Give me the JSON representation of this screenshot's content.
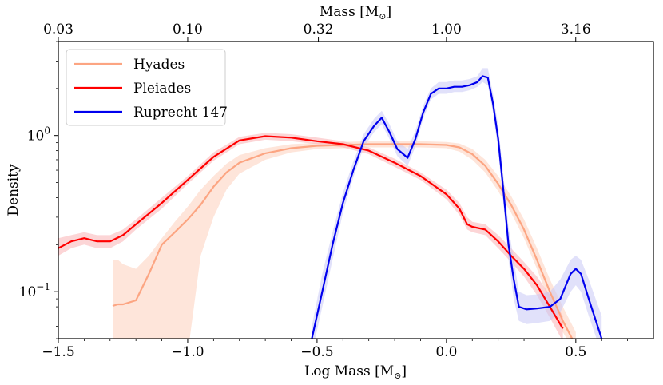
{
  "chart_data": {
    "type": "line",
    "title": "",
    "xlabel": "Log Mass [M",
    "xlabel_sub": "⊙",
    "xlabel_suffix": "]",
    "x2label": "Mass [M",
    "x2label_sub": "⊙",
    "x2label_suffix": "]",
    "ylabel": "Density",
    "xlim": [
      -1.5,
      0.8
    ],
    "ylim": [
      0.05,
      4.0
    ],
    "yscale": "log",
    "grid": false,
    "legend_position": "top-left",
    "x_ticks": [
      {
        "value": -1.5,
        "label": "−1.5"
      },
      {
        "value": -1.0,
        "label": "−1.0"
      },
      {
        "value": -0.5,
        "label": "−0.5"
      },
      {
        "value": 0.0,
        "label": "0.0"
      },
      {
        "value": 0.5,
        "label": "0.5"
      }
    ],
    "x2_ticks": [
      {
        "value": -1.5229,
        "label": "0.03"
      },
      {
        "value": -1.0,
        "label": "0.10"
      },
      {
        "value": -0.4949,
        "label": "0.32"
      },
      {
        "value": 0.0,
        "label": "1.00"
      },
      {
        "value": 0.4997,
        "label": "3.16"
      }
    ],
    "y_ticks": [
      {
        "value": 0.1,
        "base": "10",
        "exp": "−1"
      },
      {
        "value": 1.0,
        "base": "10",
        "exp": "0"
      }
    ],
    "series": [
      {
        "name": "Hyades",
        "color": "#fca582",
        "band_color": "#fdd0bc",
        "x": [
          -1.29,
          -1.27,
          -1.25,
          -1.2,
          -1.15,
          -1.1,
          -1.05,
          -1.0,
          -0.95,
          -0.9,
          -0.85,
          -0.8,
          -0.7,
          -0.6,
          -0.5,
          -0.4,
          -0.3,
          -0.2,
          -0.1,
          0.0,
          0.05,
          0.1,
          0.15,
          0.2,
          0.25,
          0.3,
          0.35,
          0.4,
          0.45,
          0.5
        ],
        "y": [
          0.081,
          0.083,
          0.083,
          0.088,
          0.13,
          0.2,
          0.24,
          0.29,
          0.36,
          0.47,
          0.58,
          0.67,
          0.77,
          0.83,
          0.86,
          0.87,
          0.88,
          0.88,
          0.88,
          0.87,
          0.84,
          0.76,
          0.64,
          0.49,
          0.36,
          0.25,
          0.16,
          0.1,
          0.065,
          0.045
        ],
        "lower": [
          0.04,
          0.04,
          0.04,
          0.04,
          0.04,
          0.04,
          0.04,
          0.04,
          0.17,
          0.3,
          0.45,
          0.57,
          0.7,
          0.78,
          0.82,
          0.83,
          0.84,
          0.84,
          0.84,
          0.83,
          0.79,
          0.7,
          0.58,
          0.44,
          0.32,
          0.22,
          0.14,
          0.085,
          0.055,
          0.04
        ],
        "upper": [
          0.16,
          0.16,
          0.15,
          0.14,
          0.17,
          0.22,
          0.28,
          0.35,
          0.45,
          0.55,
          0.66,
          0.75,
          0.83,
          0.88,
          0.9,
          0.91,
          0.92,
          0.92,
          0.92,
          0.91,
          0.89,
          0.82,
          0.7,
          0.55,
          0.41,
          0.29,
          0.19,
          0.12,
          0.08,
          0.055
        ]
      },
      {
        "name": "Pleiades",
        "color": "#ff0000",
        "band_color": "#f9b2b4",
        "x": [
          -1.5,
          -1.45,
          -1.4,
          -1.35,
          -1.3,
          -1.25,
          -1.2,
          -1.1,
          -1.0,
          -0.9,
          -0.8,
          -0.7,
          -0.6,
          -0.5,
          -0.4,
          -0.3,
          -0.2,
          -0.1,
          0.0,
          0.05,
          0.08,
          0.1,
          0.15,
          0.2,
          0.25,
          0.3,
          0.35,
          0.4,
          0.45
        ],
        "y": [
          0.19,
          0.21,
          0.22,
          0.21,
          0.21,
          0.23,
          0.27,
          0.37,
          0.52,
          0.73,
          0.93,
          0.99,
          0.97,
          0.92,
          0.88,
          0.8,
          0.67,
          0.55,
          0.42,
          0.34,
          0.27,
          0.26,
          0.25,
          0.21,
          0.17,
          0.14,
          0.11,
          0.08,
          0.058
        ],
        "lower": [
          0.17,
          0.19,
          0.2,
          0.19,
          0.19,
          0.21,
          0.25,
          0.34,
          0.49,
          0.69,
          0.88,
          0.94,
          0.92,
          0.88,
          0.84,
          0.76,
          0.63,
          0.52,
          0.39,
          0.31,
          0.25,
          0.24,
          0.23,
          0.19,
          0.155,
          0.125,
          0.095,
          0.068,
          0.048
        ],
        "upper": [
          0.22,
          0.23,
          0.24,
          0.23,
          0.23,
          0.25,
          0.29,
          0.4,
          0.55,
          0.78,
          0.98,
          1.04,
          1.02,
          0.97,
          0.92,
          0.84,
          0.71,
          0.58,
          0.45,
          0.37,
          0.3,
          0.28,
          0.27,
          0.23,
          0.19,
          0.155,
          0.125,
          0.095,
          0.07
        ]
      },
      {
        "name": "Ruprecht 147",
        "color": "#0000ee",
        "band_color": "#c8c8f5",
        "x": [
          -0.52,
          -0.48,
          -0.44,
          -0.4,
          -0.36,
          -0.32,
          -0.28,
          -0.25,
          -0.22,
          -0.19,
          -0.15,
          -0.12,
          -0.09,
          -0.06,
          -0.03,
          0.0,
          0.03,
          0.06,
          0.09,
          0.12,
          0.14,
          0.16,
          0.18,
          0.2,
          0.22,
          0.24,
          0.26,
          0.28,
          0.31,
          0.35,
          0.4,
          0.44,
          0.48,
          0.5,
          0.52,
          0.55,
          0.6
        ],
        "y": [
          0.05,
          0.1,
          0.2,
          0.37,
          0.6,
          0.92,
          1.15,
          1.3,
          1.05,
          0.82,
          0.72,
          0.95,
          1.4,
          1.85,
          2.0,
          2.0,
          2.05,
          2.05,
          2.1,
          2.2,
          2.4,
          2.35,
          1.6,
          0.95,
          0.45,
          0.2,
          0.12,
          0.08,
          0.077,
          0.078,
          0.08,
          0.09,
          0.13,
          0.14,
          0.13,
          0.09,
          0.05
        ],
        "lower": [
          0.04,
          0.08,
          0.16,
          0.32,
          0.54,
          0.84,
          1.05,
          1.18,
          0.95,
          0.74,
          0.64,
          0.85,
          1.28,
          1.7,
          1.85,
          1.85,
          1.9,
          1.9,
          1.95,
          2.05,
          2.2,
          2.1,
          1.4,
          0.8,
          0.37,
          0.16,
          0.09,
          0.065,
          0.062,
          0.063,
          0.065,
          0.074,
          0.1,
          0.11,
          0.1,
          0.07,
          0.04
        ],
        "upper": [
          0.06,
          0.13,
          0.24,
          0.43,
          0.68,
          1.02,
          1.28,
          1.44,
          1.18,
          0.92,
          0.82,
          1.07,
          1.55,
          2.0,
          2.2,
          2.2,
          2.25,
          2.25,
          2.3,
          2.4,
          2.7,
          2.7,
          1.85,
          1.15,
          0.56,
          0.26,
          0.16,
          0.1,
          0.095,
          0.096,
          0.1,
          0.12,
          0.16,
          0.17,
          0.16,
          0.12,
          0.07
        ]
      }
    ]
  }
}
